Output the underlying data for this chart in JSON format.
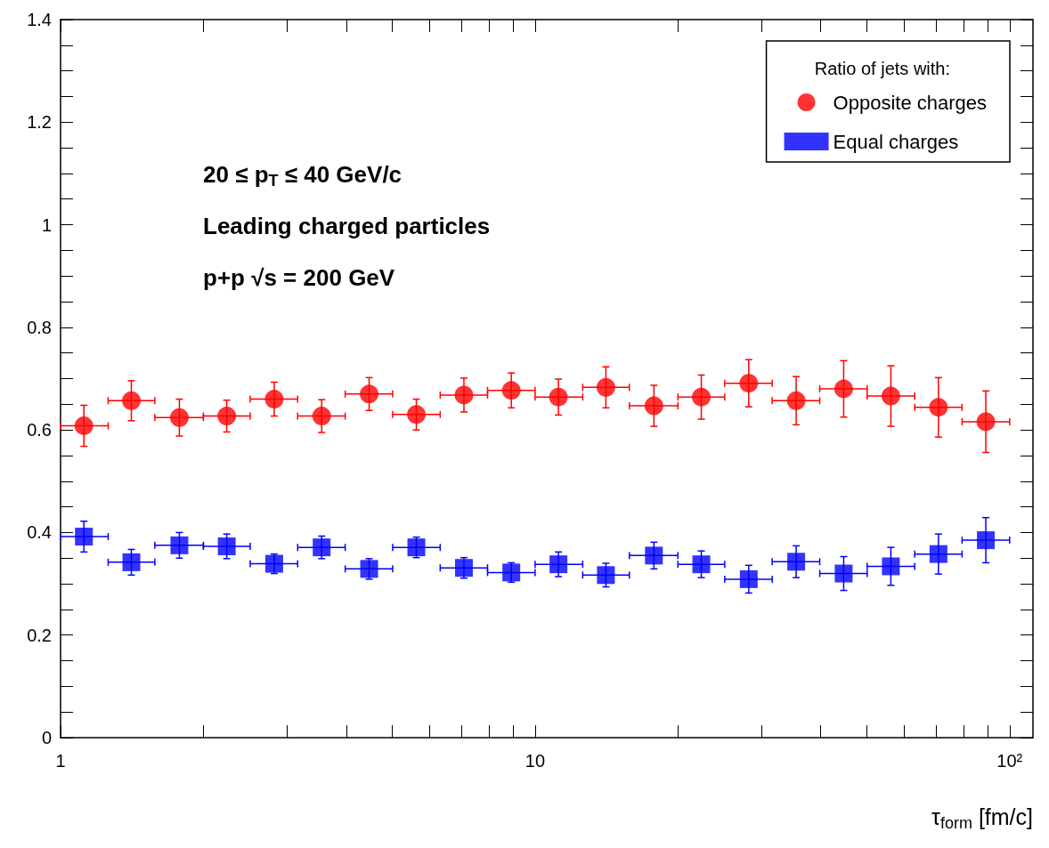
{
  "chart_data": {
    "type": "scatter",
    "xlabel": "τ$_{form}$ [fm/c]",
    "legend_title": "Ratio of jets with:",
    "annotations": [
      "20 ≤ p$_{T}$ ≤ 40 GeV/c",
      "Leading charged particles",
      "p+p √s = 200 GeV"
    ],
    "x": [
      1.12,
      1.41,
      1.78,
      2.24,
      2.82,
      3.55,
      4.47,
      5.62,
      7.08,
      8.91,
      11.2,
      14.1,
      17.8,
      22.4,
      28.2,
      35.5,
      44.7,
      56.2,
      70.8,
      89.1
    ],
    "series": [
      {
        "name": "Opposite charges",
        "color": "#ff0000",
        "marker": "circle",
        "xerrors": [
          [
            1,
            1.26
          ],
          [
            1.26,
            1.58
          ],
          [
            1.58,
            2.0
          ],
          [
            2.0,
            2.51
          ],
          [
            2.51,
            3.16
          ],
          [
            3.16,
            3.98
          ],
          [
            3.98,
            5.01
          ],
          [
            5.01,
            6.31
          ],
          [
            6.31,
            7.94
          ],
          [
            7.94,
            10
          ],
          [
            10,
            12.6
          ],
          [
            12.6,
            15.8
          ],
          [
            15.8,
            20.0
          ],
          [
            20.0,
            25.1
          ],
          [
            25.1,
            31.6
          ],
          [
            31.6,
            39.8
          ],
          [
            39.8,
            50.1
          ],
          [
            50.1,
            63.1
          ],
          [
            63.1,
            79.4
          ],
          [
            79.4,
            100
          ]
        ],
        "values": [
          0.608,
          0.657,
          0.624,
          0.627,
          0.66,
          0.627,
          0.67,
          0.63,
          0.668,
          0.677,
          0.664,
          0.683,
          0.647,
          0.664,
          0.691,
          0.657,
          0.68,
          0.666,
          0.644,
          0.616
        ],
        "errors": [
          0.04,
          0.039,
          0.036,
          0.031,
          0.033,
          0.032,
          0.032,
          0.03,
          0.033,
          0.034,
          0.035,
          0.04,
          0.04,
          0.043,
          0.046,
          0.047,
          0.055,
          0.059,
          0.058,
          0.06
        ]
      },
      {
        "name": "Equal charges",
        "color": "#0000ff",
        "marker": "square",
        "xerrors": [
          [
            1,
            1.26
          ],
          [
            1.26,
            1.58
          ],
          [
            1.58,
            2.0
          ],
          [
            2.0,
            2.51
          ],
          [
            2.51,
            3.16
          ],
          [
            3.16,
            3.98
          ],
          [
            3.98,
            5.01
          ],
          [
            5.01,
            6.31
          ],
          [
            6.31,
            7.94
          ],
          [
            7.94,
            10
          ],
          [
            10,
            12.6
          ],
          [
            12.6,
            15.8
          ],
          [
            15.8,
            20.0
          ],
          [
            20.0,
            25.1
          ],
          [
            25.1,
            31.6
          ],
          [
            31.6,
            39.8
          ],
          [
            39.8,
            50.1
          ],
          [
            50.1,
            63.1
          ],
          [
            63.1,
            79.4
          ],
          [
            79.4,
            100
          ]
        ],
        "values": [
          0.392,
          0.342,
          0.375,
          0.373,
          0.339,
          0.371,
          0.329,
          0.371,
          0.331,
          0.322,
          0.338,
          0.317,
          0.355,
          0.338,
          0.309,
          0.343,
          0.32,
          0.334,
          0.358,
          0.385
        ],
        "errors": [
          0.03,
          0.025,
          0.025,
          0.024,
          0.019,
          0.022,
          0.02,
          0.02,
          0.02,
          0.019,
          0.024,
          0.023,
          0.026,
          0.026,
          0.027,
          0.031,
          0.033,
          0.037,
          0.039,
          0.044
        ]
      }
    ],
    "log": "x",
    "xlim": [
      1,
      112
    ],
    "xticks": [
      1,
      10,
      {
        "value": 100,
        "label": "10²"
      }
    ],
    "ylim": [
      0,
      1.4
    ],
    "yticks": [
      0,
      0.2,
      0.4,
      0.6,
      0.8,
      1,
      1.2,
      1.4
    ],
    "grid": false,
    "legend": "top right"
  }
}
